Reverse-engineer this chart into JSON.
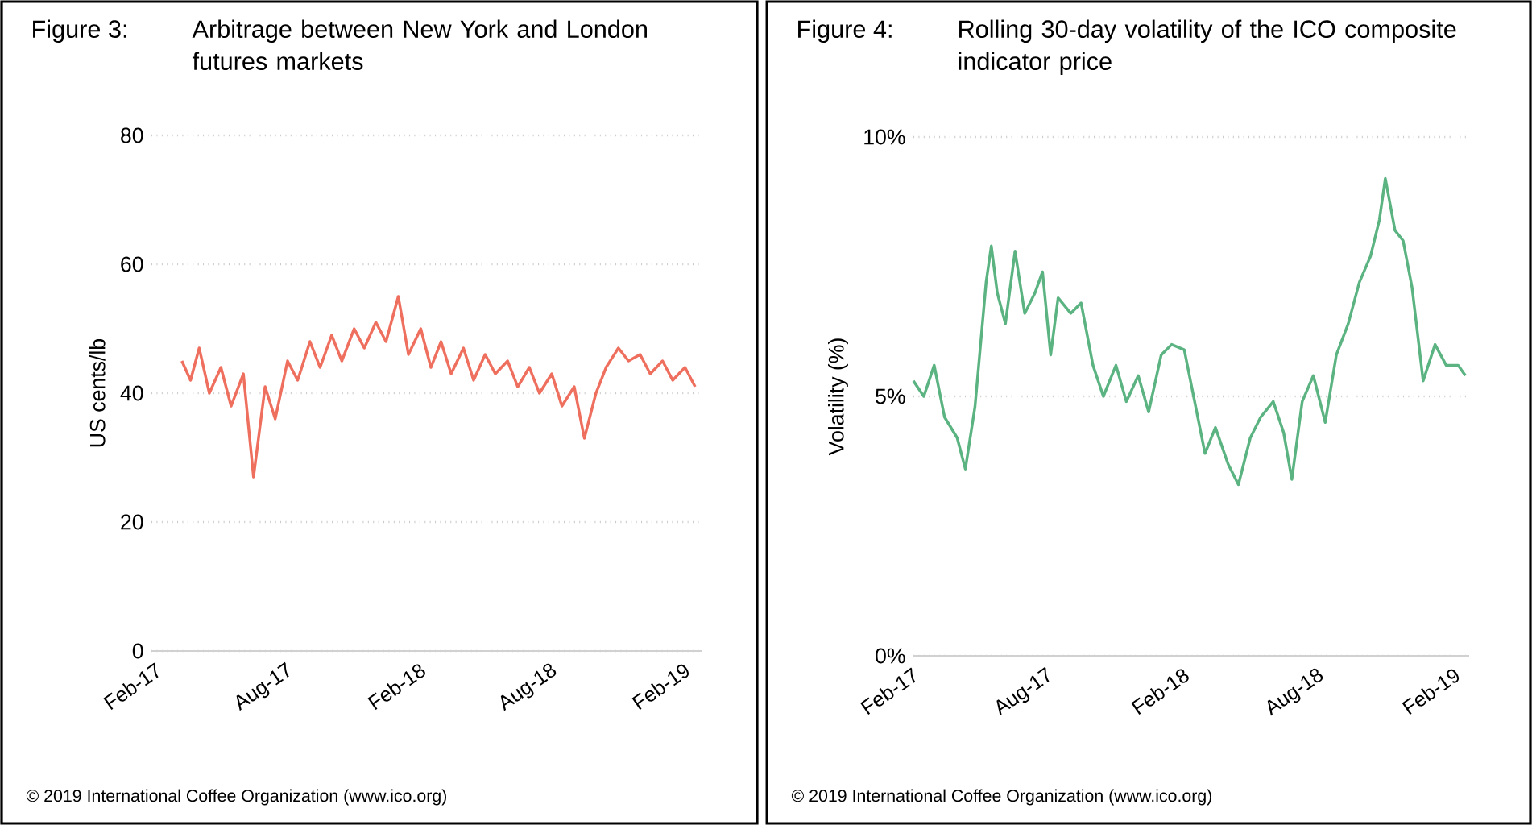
{
  "chart_data": [
    {
      "type": "line",
      "title": "Figure 3:",
      "subtitle": "Arbitrage between New York and London futures markets",
      "ylabel": "US cents/lb",
      "xlim": [
        "2017-01-25",
        "2019-02-25"
      ],
      "ylim": [
        0,
        80
      ],
      "yticks": [
        0,
        20,
        40,
        60,
        80
      ],
      "xticks": [
        {
          "value": "2017-02-01",
          "label": "Feb-17"
        },
        {
          "value": "2017-08-01",
          "label": "Aug-17"
        },
        {
          "value": "2018-02-01",
          "label": "Feb-18"
        },
        {
          "value": "2018-08-01",
          "label": "Aug-18"
        },
        {
          "value": "2019-02-01",
          "label": "Feb-19"
        }
      ],
      "grid": "y",
      "annotations": [
        "© 2019 International Coffee Organization (www.ico.org)"
      ],
      "series": [
        {
          "color": "#ef6f5f",
          "x": [
            "2017-03-08",
            "2017-03-20",
            "2017-04-01",
            "2017-04-15",
            "2017-05-01",
            "2017-05-15",
            "2017-06-01",
            "2017-06-15",
            "2017-07-01",
            "2017-07-15",
            "2017-08-01",
            "2017-08-15",
            "2017-09-01",
            "2017-09-15",
            "2017-10-01",
            "2017-10-15",
            "2017-11-01",
            "2017-11-15",
            "2017-12-01",
            "2017-12-15",
            "2018-01-01",
            "2018-01-15",
            "2018-02-01",
            "2018-02-15",
            "2018-03-01",
            "2018-03-15",
            "2018-04-01",
            "2018-04-15",
            "2018-05-01",
            "2018-05-15",
            "2018-06-01",
            "2018-06-15",
            "2018-07-01",
            "2018-07-15",
            "2018-08-01",
            "2018-08-15",
            "2018-09-01",
            "2018-09-15",
            "2018-10-01",
            "2018-10-15",
            "2018-11-01",
            "2018-11-15",
            "2018-12-01",
            "2018-12-15",
            "2019-01-01",
            "2019-01-15",
            "2019-02-01",
            "2019-02-15"
          ],
          "values": [
            45,
            42,
            47,
            40,
            44,
            38,
            43,
            27,
            41,
            36,
            45,
            42,
            48,
            44,
            49,
            45,
            50,
            47,
            51,
            48,
            55,
            46,
            50,
            44,
            48,
            43,
            47,
            42,
            46,
            43,
            45,
            41,
            44,
            40,
            43,
            38,
            41,
            33,
            40,
            44,
            47,
            45,
            46,
            43,
            45,
            42,
            44,
            41
          ]
        }
      ]
    },
    {
      "type": "line",
      "title": "Figure 4:",
      "subtitle": "Rolling 30-day volatility of the ICO composite indicator price",
      "ylabel": "Volatility (%)",
      "xlim": [
        "2017-02-01",
        "2019-02-20"
      ],
      "ylim": [
        0,
        10
      ],
      "yticks": [
        {
          "value": 0,
          "label": "0%"
        },
        {
          "value": 5,
          "label": "5%"
        },
        {
          "value": 10,
          "label": "10%"
        }
      ],
      "xticks": [
        {
          "value": "2017-02-01",
          "label": "Feb-17"
        },
        {
          "value": "2017-08-01",
          "label": "Aug-17"
        },
        {
          "value": "2018-02-01",
          "label": "Feb-18"
        },
        {
          "value": "2018-08-01",
          "label": "Aug-18"
        },
        {
          "value": "2019-02-01",
          "label": "Feb-19"
        }
      ],
      "grid": "y",
      "annotations": [
        "© 2019 International Coffee Organization (www.ico.org)"
      ],
      "series": [
        {
          "color": "#5bb381",
          "x": [
            "2017-02-01",
            "2017-02-15",
            "2017-03-01",
            "2017-03-15",
            "2017-04-01",
            "2017-04-12",
            "2017-04-25",
            "2017-05-10",
            "2017-05-17",
            "2017-05-25",
            "2017-06-05",
            "2017-06-18",
            "2017-07-01",
            "2017-07-15",
            "2017-07-25",
            "2017-08-05",
            "2017-08-15",
            "2017-09-01",
            "2017-09-15",
            "2017-10-01",
            "2017-10-15",
            "2017-11-01",
            "2017-11-15",
            "2017-12-01",
            "2017-12-15",
            "2018-01-01",
            "2018-01-15",
            "2018-02-01",
            "2018-02-15",
            "2018-03-01",
            "2018-03-15",
            "2018-04-01",
            "2018-04-15",
            "2018-05-01",
            "2018-05-15",
            "2018-06-01",
            "2018-06-15",
            "2018-06-26",
            "2018-07-10",
            "2018-07-25",
            "2018-08-10",
            "2018-08-25",
            "2018-09-10",
            "2018-09-25",
            "2018-10-10",
            "2018-10-22",
            "2018-10-30",
            "2018-11-12",
            "2018-11-23",
            "2018-12-05",
            "2018-12-20",
            "2019-01-05",
            "2019-01-20",
            "2019-02-05",
            "2019-02-15"
          ],
          "values": [
            5.3,
            5.0,
            5.6,
            4.6,
            4.2,
            3.6,
            4.8,
            7.2,
            7.9,
            7.0,
            6.4,
            7.8,
            6.6,
            7.0,
            7.4,
            5.8,
            6.9,
            6.6,
            6.8,
            5.6,
            5.0,
            5.6,
            4.9,
            5.4,
            4.7,
            5.8,
            6.0,
            5.9,
            4.9,
            3.9,
            4.4,
            3.7,
            3.3,
            4.2,
            4.6,
            4.9,
            4.3,
            3.4,
            4.9,
            5.4,
            4.5,
            5.8,
            6.4,
            7.2,
            7.7,
            8.4,
            9.2,
            8.2,
            8.0,
            7.1,
            5.3,
            6.0,
            5.6,
            5.6,
            5.4
          ]
        }
      ]
    }
  ]
}
